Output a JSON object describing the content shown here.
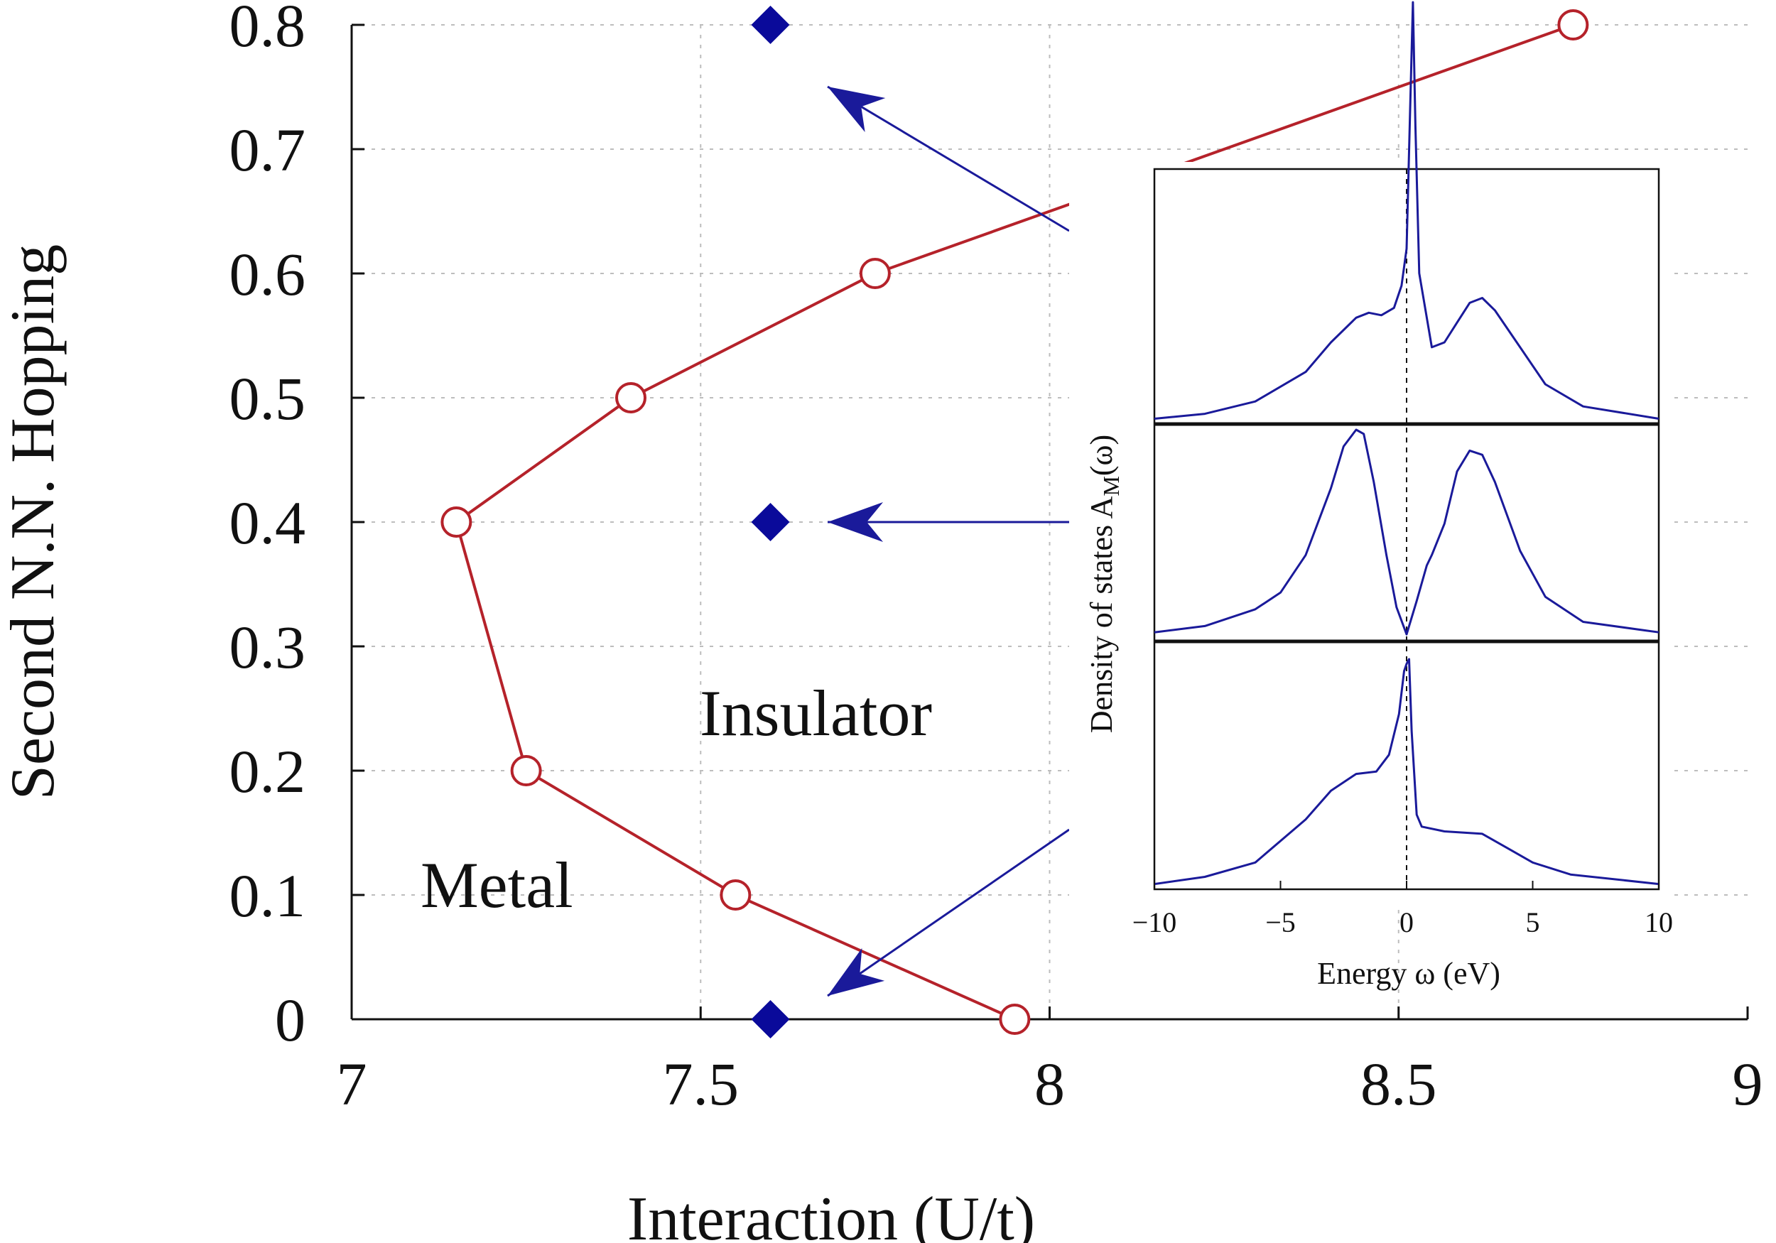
{
  "chart_data": [
    {
      "type": "line",
      "xlabel": "Interaction (U/t)",
      "ylabel": "Second N.N. Hopping",
      "xlim": [
        7,
        9
      ],
      "ylim": [
        0,
        0.8
      ],
      "xticks": [
        "7",
        "7.5",
        "8",
        "8.5",
        "9"
      ],
      "yticks": [
        "0",
        "0.1",
        "0.2",
        "0.3",
        "0.4",
        "0.5",
        "0.6",
        "0.7",
        "0.8"
      ],
      "grid": true,
      "series": [
        {
          "marker": "open-circle",
          "color": "#b5222a",
          "x": [
            7.95,
            7.55,
            7.25,
            7.15,
            7.4,
            7.75,
            8.75
          ],
          "y": [
            0.0,
            0.1,
            0.2,
            0.4,
            0.5,
            0.6,
            0.8
          ]
        },
        {
          "marker": "filled-diamond",
          "color": "#0a0a9a",
          "x": [
            7.6,
            7.6,
            7.6
          ],
          "y": [
            0.0,
            0.4,
            0.8
          ]
        }
      ],
      "annotations": [
        "Insulator",
        "Metal"
      ]
    },
    {
      "type": "line",
      "xlabel": "Energy ω (eV)",
      "ylabel_prefix": "Density of states A",
      "ylabel_sub": "M",
      "ylabel_suffix": "(ω)",
      "xlim": [
        -10,
        10
      ],
      "xticks": [
        "−10",
        "−5",
        "0",
        "5",
        "10"
      ],
      "panels": 3,
      "color": "#1a1a9a",
      "panel_curves": {
        "top": [
          [
            -10,
            0.01
          ],
          [
            -8,
            0.03
          ],
          [
            -6,
            0.08
          ],
          [
            -4,
            0.2
          ],
          [
            -3,
            0.32
          ],
          [
            -2,
            0.42
          ],
          [
            -1.5,
            0.44
          ],
          [
            -1,
            0.43
          ],
          [
            -0.5,
            0.46
          ],
          [
            -0.2,
            0.55
          ],
          [
            0,
            0.7
          ],
          [
            0.15,
            1.3
          ],
          [
            0.25,
            1.7
          ],
          [
            0.35,
            1.2
          ],
          [
            0.5,
            0.6
          ],
          [
            1,
            0.3
          ],
          [
            1.5,
            0.32
          ],
          [
            2,
            0.4
          ],
          [
            2.5,
            0.48
          ],
          [
            3,
            0.5
          ],
          [
            3.5,
            0.45
          ],
          [
            4.5,
            0.3
          ],
          [
            5.5,
            0.15
          ],
          [
            7,
            0.06
          ],
          [
            10,
            0.01
          ]
        ],
        "middle": [
          [
            -10,
            0.03
          ],
          [
            -8,
            0.06
          ],
          [
            -6,
            0.14
          ],
          [
            -5,
            0.22
          ],
          [
            -4,
            0.4
          ],
          [
            -3,
            0.72
          ],
          [
            -2.5,
            0.92
          ],
          [
            -2,
            1.0
          ],
          [
            -1.7,
            0.98
          ],
          [
            -1.3,
            0.75
          ],
          [
            -0.8,
            0.4
          ],
          [
            -0.4,
            0.15
          ],
          [
            0,
            0.02
          ],
          [
            0.4,
            0.18
          ],
          [
            0.8,
            0.35
          ],
          [
            1,
            0.4
          ],
          [
            1.5,
            0.55
          ],
          [
            2,
            0.8
          ],
          [
            2.5,
            0.9
          ],
          [
            3,
            0.88
          ],
          [
            3.5,
            0.75
          ],
          [
            4.5,
            0.42
          ],
          [
            5.5,
            0.2
          ],
          [
            7,
            0.08
          ],
          [
            10,
            0.03
          ]
        ],
        "bottom": [
          [
            -10,
            0.01
          ],
          [
            -8,
            0.04
          ],
          [
            -6,
            0.1
          ],
          [
            -4,
            0.28
          ],
          [
            -3,
            0.4
          ],
          [
            -2,
            0.47
          ],
          [
            -1.2,
            0.48
          ],
          [
            -0.7,
            0.55
          ],
          [
            -0.3,
            0.72
          ],
          [
            -0.1,
            0.9
          ],
          [
            0,
            0.93
          ],
          [
            0.1,
            0.95
          ],
          [
            0.2,
            0.65
          ],
          [
            0.4,
            0.3
          ],
          [
            0.6,
            0.25
          ],
          [
            1.5,
            0.23
          ],
          [
            3,
            0.22
          ],
          [
            4,
            0.16
          ],
          [
            5,
            0.1
          ],
          [
            6.5,
            0.05
          ],
          [
            10,
            0.01
          ]
        ]
      }
    }
  ]
}
